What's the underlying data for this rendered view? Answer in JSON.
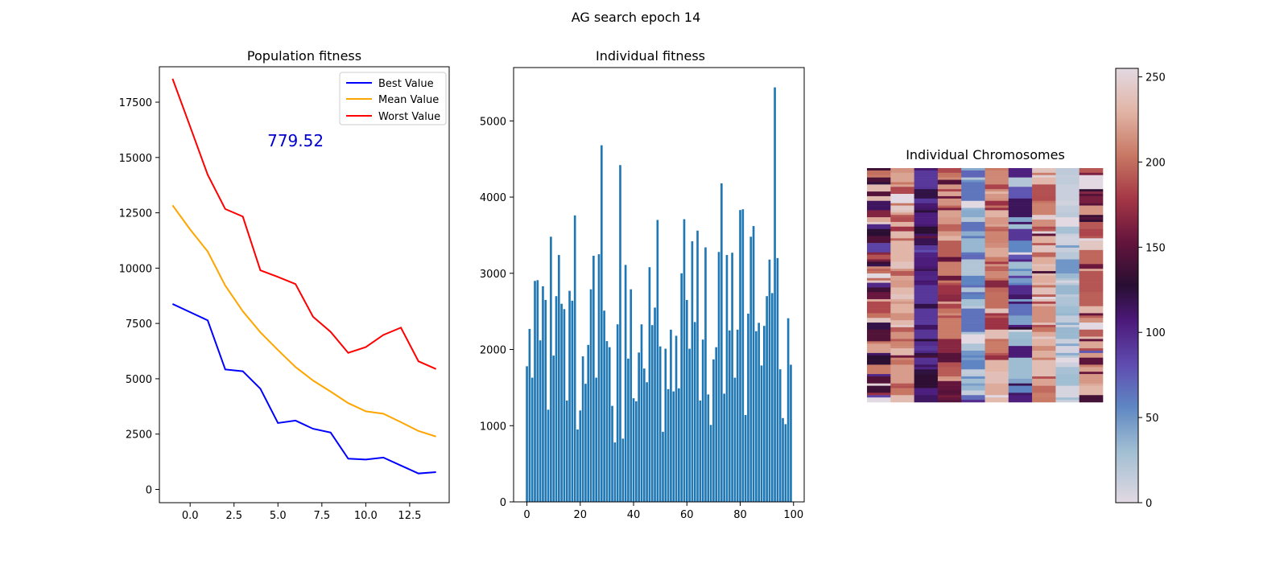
{
  "figure": {
    "suptitle": "AG search epoch 14"
  },
  "chart_data": [
    {
      "type": "line",
      "title": "Population fitness",
      "xlabel": "",
      "ylabel": "",
      "xlim": [
        -1.75,
        14.75
      ],
      "ylim": [
        -600,
        19100
      ],
      "xticks": [
        0,
        2.5,
        5,
        7.5,
        10,
        12.5
      ],
      "xtick_labels": [
        "0.0",
        "2.5",
        "5.0",
        "7.5",
        "10.0",
        "12.5"
      ],
      "yticks": [
        0,
        2500,
        5000,
        7500,
        10000,
        12500,
        15000,
        17500
      ],
      "ytick_labels": [
        "0",
        "2500",
        "5000",
        "7500",
        "10000",
        "12500",
        "15000",
        "17500"
      ],
      "legend_position": "top-right",
      "annotation": {
        "text": "779.52",
        "x": 6.0,
        "y": 15500,
        "color": "#0000cc"
      },
      "x": [
        -1,
        0,
        1,
        2,
        3,
        4,
        5,
        6,
        7,
        8,
        9,
        10,
        11,
        12,
        13,
        14
      ],
      "series": [
        {
          "name": "Best Value",
          "color": "#0000ff",
          "values": [
            8380,
            8010,
            7640,
            5420,
            5340,
            4550,
            3000,
            3110,
            2740,
            2570,
            1390,
            1350,
            1440,
            1080,
            720,
            780
          ]
        },
        {
          "name": "Mean Value",
          "color": "#ffa500",
          "values": [
            12840,
            11750,
            10750,
            9210,
            8050,
            7100,
            6300,
            5530,
            4920,
            4420,
            3900,
            3530,
            3420,
            3040,
            2640,
            2390
          ]
        },
        {
          "name": "Worst Value",
          "color": "#ff0000",
          "values": [
            18560,
            16400,
            14220,
            12670,
            12330,
            9900,
            9600,
            9280,
            7800,
            7120,
            6170,
            6430,
            6980,
            7310,
            5790,
            5440
          ]
        }
      ]
    },
    {
      "type": "bar",
      "title": "Individual fitness",
      "xlabel": "",
      "ylabel": "",
      "color": "#1f77b4",
      "xlim": [
        -5,
        104
      ],
      "ylim": [
        0,
        5700
      ],
      "xticks": [
        0,
        20,
        40,
        60,
        80,
        100
      ],
      "xtick_labels": [
        "0",
        "20",
        "40",
        "60",
        "80",
        "100"
      ],
      "yticks": [
        0,
        1000,
        2000,
        3000,
        4000,
        5000
      ],
      "ytick_labels": [
        "0",
        "1000",
        "2000",
        "3000",
        "4000",
        "5000"
      ],
      "values": [
        1780,
        2270,
        1630,
        2900,
        2910,
        2120,
        2830,
        2650,
        1210,
        3480,
        1920,
        2700,
        3240,
        2600,
        2530,
        1330,
        2770,
        2640,
        3760,
        950,
        1200,
        1910,
        1550,
        2060,
        2790,
        3230,
        1630,
        3250,
        4680,
        2510,
        2110,
        2030,
        1260,
        780,
        2330,
        4420,
        830,
        3110,
        1880,
        2790,
        1360,
        1320,
        1960,
        2330,
        1750,
        1570,
        3080,
        2320,
        2550,
        3700,
        2040,
        920,
        2010,
        1480,
        2260,
        1450,
        2180,
        1490,
        3000,
        3710,
        2650,
        2010,
        3420,
        2360,
        3560,
        1330,
        2130,
        3340,
        1410,
        1010,
        1870,
        2030,
        3280,
        4180,
        1420,
        3240,
        2250,
        3270,
        1630,
        2260,
        3830,
        3840,
        1140,
        2470,
        3480,
        3620,
        2240,
        2350,
        1790,
        2310,
        2700,
        3180,
        2740,
        5440,
        3200,
        1740,
        1100,
        1020,
        2410,
        1800
      ]
    },
    {
      "type": "heatmap",
      "title": "Individual Chromosomes",
      "colormap": "twilight",
      "colorbar": {
        "vmin": 0,
        "vmax": 255,
        "ticks": [
          0,
          50,
          100,
          150,
          200,
          250
        ],
        "tick_labels": [
          "0",
          "50",
          "100",
          "150",
          "200",
          "250"
        ]
      },
      "column_means": [
        170,
        215,
        110,
        185,
        40,
        205,
        75,
        215,
        20,
        185
      ],
      "column_spread": [
        85,
        30,
        20,
        40,
        30,
        35,
        45,
        35,
        15,
        55
      ],
      "rows": 100,
      "columns": 10
    }
  ]
}
